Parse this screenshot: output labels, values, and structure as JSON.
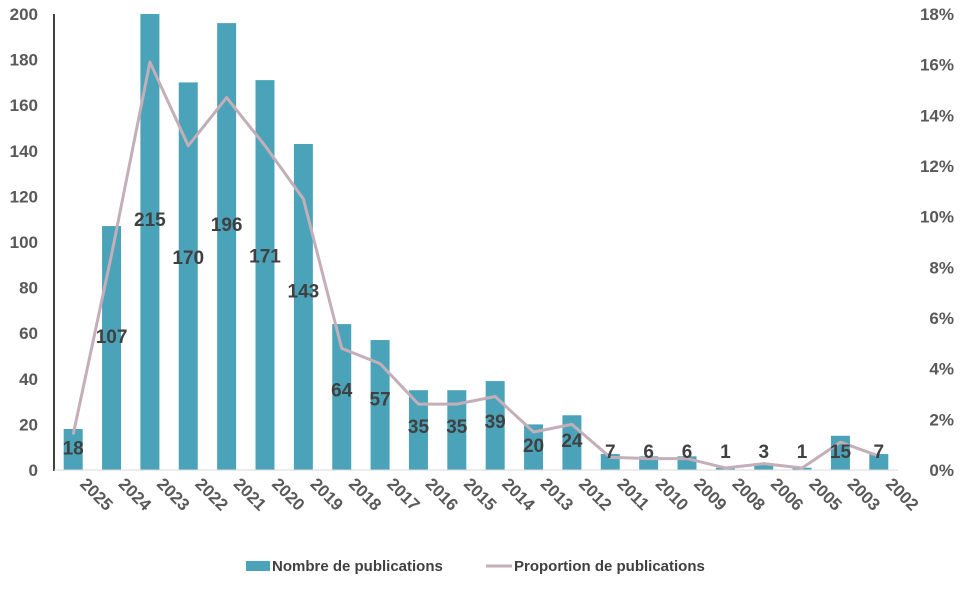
{
  "chart_data": {
    "type": "bar",
    "categories": [
      "2025",
      "2024",
      "2023",
      "2022",
      "2021",
      "2020",
      "2019",
      "2018",
      "2017",
      "2016",
      "2015",
      "2014",
      "2013",
      "2012",
      "2011",
      "2010",
      "2009",
      "2008",
      "2006",
      "2005",
      "2003",
      "2002"
    ],
    "series": [
      {
        "name": "Nombre de publications",
        "type": "bar",
        "axis": "left",
        "color": "#4BA3B9",
        "values": [
          18,
          107,
          215,
          170,
          196,
          171,
          143,
          64,
          57,
          35,
          35,
          39,
          20,
          24,
          7,
          6,
          6,
          1,
          3,
          1,
          15,
          7
        ],
        "data_labels": [
          "18",
          "107",
          "215",
          "170",
          "196",
          "171",
          "143",
          "64",
          "57",
          "35",
          "35",
          "39",
          "20",
          "24",
          "7",
          "6",
          "6",
          "1",
          "3",
          "1",
          "15",
          "7"
        ]
      },
      {
        "name": "Proportion de publications",
        "type": "line",
        "axis": "right",
        "color": "#C4AEB8",
        "values": [
          1.4,
          8.5,
          16.1,
          12.8,
          14.7,
          12.8,
          10.7,
          4.8,
          4.2,
          2.6,
          2.6,
          2.9,
          1.5,
          1.8,
          0.5,
          0.45,
          0.45,
          0.08,
          0.25,
          0.08,
          1.1,
          0.55
        ]
      }
    ],
    "y_left": {
      "ylim": [
        0,
        200
      ],
      "ticks": [
        "0",
        "20",
        "40",
        "60",
        "80",
        "100",
        "120",
        "140",
        "160",
        "180",
        "200"
      ]
    },
    "y_right": {
      "ylim": [
        0,
        18
      ],
      "ticks": [
        "0%",
        "2%",
        "4%",
        "6%",
        "8%",
        "10%",
        "12%",
        "14%",
        "16%",
        "18%"
      ]
    },
    "grid": false,
    "legend_position": "bottom"
  }
}
